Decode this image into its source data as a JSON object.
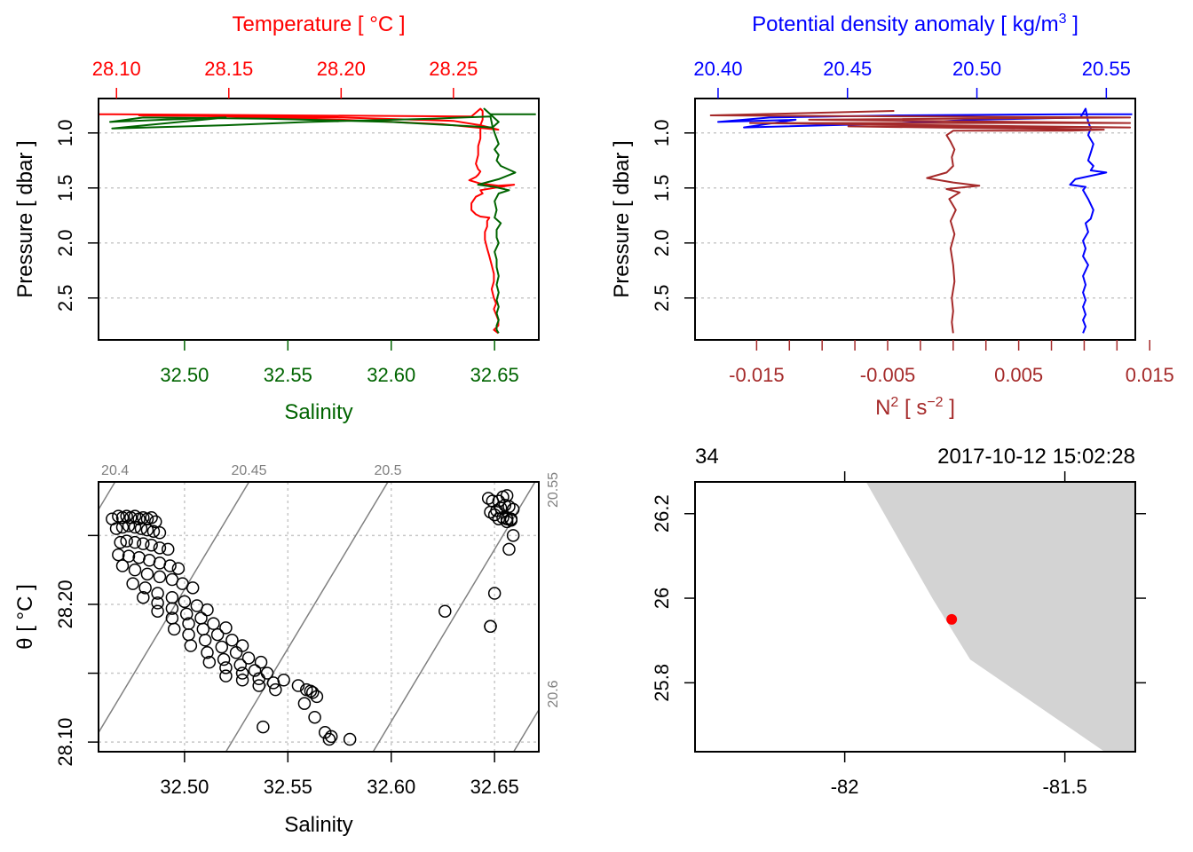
{
  "chart_data": [
    {
      "type": "line",
      "panel": "top-left",
      "title": "",
      "top_axis": {
        "label": "Temperature [ °C ]",
        "color": "#FF0000",
        "range": [
          28.092,
          28.288
        ],
        "ticks": [
          28.1,
          28.15,
          28.2,
          28.25
        ],
        "tick_labels": [
          "28.10",
          "28.15",
          "28.20",
          "28.25"
        ]
      },
      "bottom_axis": {
        "label": "Salinity",
        "color": "#006400",
        "range": [
          32.4584,
          32.6714
        ],
        "ticks": [
          32.5,
          32.55,
          32.6,
          32.65
        ],
        "tick_labels": [
          "32.50",
          "32.55",
          "32.60",
          "32.65"
        ]
      },
      "y_axis": {
        "label": "Pressure [ dbar ]",
        "range": [
          0.687,
          2.881
        ],
        "reversed": true,
        "ticks": [
          1.0,
          1.5,
          2.0,
          2.5
        ],
        "tick_labels": [
          "1.0",
          "1.5",
          "2.0",
          "2.5"
        ],
        "grid": "horizontal-dotted"
      },
      "series": [
        {
          "name": "Temperature",
          "axis": "top",
          "color": "#FF0000",
          "x": [
            28.092,
            28.258,
            28.262,
            28.263,
            28.263,
            28.262,
            28.27,
            28.245,
            28.2,
            28.15,
            28.11,
            28.2,
            28.25,
            28.262,
            28.262,
            28.262,
            28.261,
            28.261,
            28.26,
            28.261,
            28.262,
            28.261,
            28.26,
            28.257,
            28.262,
            28.27,
            28.277,
            28.268,
            28.262,
            28.263,
            28.26,
            28.258,
            28.258,
            28.26,
            28.262,
            28.266,
            28.265,
            28.265,
            28.264,
            28.264,
            28.265,
            28.266,
            28.267,
            28.268,
            28.268,
            28.267,
            28.268,
            28.269,
            28.268,
            28.269,
            28.27,
            28.27,
            28.268,
            28.27
          ],
          "y": [
            0.83,
            0.85,
            0.78,
            0.8,
            0.88,
            0.93,
            0.97,
            0.92,
            0.88,
            0.85,
            0.84,
            0.86,
            0.89,
            0.93,
            0.98,
            1.05,
            1.12,
            1.2,
            1.28,
            1.33,
            1.35,
            1.38,
            1.4,
            1.43,
            1.46,
            1.48,
            1.47,
            1.5,
            1.52,
            1.55,
            1.58,
            1.64,
            1.7,
            1.74,
            1.76,
            1.77,
            1.8,
            1.85,
            1.9,
            1.97,
            2.05,
            2.12,
            2.2,
            2.28,
            2.35,
            2.42,
            2.5,
            2.55,
            2.6,
            2.65,
            2.7,
            2.75,
            2.79,
            2.82
          ]
        },
        {
          "name": "Salinity",
          "axis": "bottom",
          "color": "#006400",
          "x": [
            32.67,
            32.648,
            32.645,
            32.652,
            32.649,
            32.6,
            32.54,
            32.48,
            32.464,
            32.49,
            32.52,
            32.47,
            32.465,
            32.52,
            32.56,
            32.62,
            32.648,
            32.649,
            32.65,
            32.651,
            32.652,
            32.65,
            32.652,
            32.651,
            32.653,
            32.66,
            32.652,
            32.642,
            32.65,
            32.657,
            32.652,
            32.65,
            32.651,
            32.65,
            32.653,
            32.651,
            32.651,
            32.652,
            32.65,
            32.651,
            32.651,
            32.652,
            32.651,
            32.652,
            32.651,
            32.652,
            32.651,
            32.652,
            32.651,
            32.651,
            32.652
          ],
          "y": [
            0.83,
            0.83,
            0.78,
            0.9,
            0.95,
            0.9,
            0.87,
            0.86,
            0.9,
            0.88,
            0.86,
            0.95,
            0.96,
            0.93,
            0.9,
            0.87,
            0.85,
            0.94,
            1.0,
            1.05,
            1.1,
            1.15,
            1.2,
            1.25,
            1.3,
            1.36,
            1.42,
            1.47,
            1.49,
            1.52,
            1.55,
            1.62,
            1.7,
            1.77,
            1.82,
            1.88,
            1.95,
            2.0,
            2.08,
            2.15,
            2.22,
            2.3,
            2.38,
            2.45,
            2.52,
            2.58,
            2.64,
            2.7,
            2.75,
            2.79,
            2.82
          ]
        }
      ]
    },
    {
      "type": "line",
      "panel": "top-right",
      "title": "",
      "top_axis": {
        "label": "Potential density anomaly [ kg/m3 ]",
        "color": "#0000FF",
        "range": [
          20.3911,
          20.5612
        ],
        "ticks": [
          20.4,
          20.45,
          20.5,
          20.55
        ],
        "tick_labels": [
          "20.40",
          "20.45",
          "20.50",
          "20.55"
        ]
      },
      "bottom_axis": {
        "label": "N2 [ s-2 ]",
        "color": "#A52A2A",
        "range": [
          -0.0197,
          0.0139
        ],
        "ticks": [
          -0.015,
          -0.0125,
          -0.01,
          -0.0075,
          -0.005,
          -0.0025,
          0.0,
          0.0025,
          0.005,
          0.0075,
          0.01,
          0.0125,
          0.015
        ],
        "tick_labels": [
          "-0.015",
          "",
          "",
          "",
          "-0.005",
          "",
          "",
          "",
          "0.005",
          "",
          "",
          "",
          "0.015"
        ]
      },
      "y_axis": {
        "label": "Pressure [ dbar ]",
        "range": [
          0.687,
          2.881
        ],
        "reversed": true,
        "ticks": [
          1.0,
          1.5,
          2.0,
          2.5
        ],
        "tick_labels": [
          "1.0",
          "1.5",
          "2.0",
          "2.5"
        ],
        "grid": "horizontal-dotted"
      },
      "series": [
        {
          "name": "Potential density anomaly",
          "axis": "top",
          "color": "#0000FF",
          "x": [
            20.56,
            20.54,
            20.47,
            20.42,
            20.4,
            20.43,
            20.41,
            20.46,
            20.5,
            20.54,
            20.542,
            20.543,
            20.544,
            20.543,
            20.545,
            20.544,
            20.543,
            20.545,
            20.544,
            20.55,
            20.538,
            20.536,
            20.542,
            20.541,
            20.543,
            20.545,
            20.544,
            20.542,
            20.543,
            20.541,
            20.542,
            20.541,
            20.543,
            20.541,
            20.542,
            20.541,
            20.542,
            20.541,
            20.542,
            20.541,
            20.542,
            20.541
          ],
          "y": [
            0.83,
            0.83,
            0.84,
            0.86,
            0.9,
            0.88,
            0.95,
            0.92,
            0.88,
            0.86,
            0.78,
            0.9,
            0.96,
            1.02,
            1.1,
            1.18,
            1.25,
            1.3,
            1.34,
            1.36,
            1.42,
            1.47,
            1.49,
            1.52,
            1.6,
            1.7,
            1.78,
            1.82,
            1.9,
            1.98,
            2.05,
            2.12,
            2.2,
            2.3,
            2.38,
            2.45,
            2.52,
            2.58,
            2.65,
            2.7,
            2.76,
            2.82
          ]
        },
        {
          "name": "N2",
          "axis": "bottom",
          "color": "#A52A2A",
          "x": [
            -0.0045,
            -0.0185,
            0.0135,
            -0.011,
            0.0135,
            -0.0155,
            0.0135,
            -0.008,
            0.0115,
            0.009,
            0.0,
            -0.0005,
            -0.0002,
            0.0001,
            -0.0001,
            0.0,
            -0.0005,
            -0.002,
            0.0,
            0.002,
            -0.0005,
            0.0005,
            -0.0003,
            0.0002,
            -0.0002,
            0.0001,
            -0.0002,
            0.0,
            0.0001,
            -0.0001,
            0.0,
            -0.0001,
            0.0
          ],
          "y": [
            0.8,
            0.84,
            0.86,
            0.88,
            0.91,
            0.91,
            0.95,
            0.94,
            0.97,
            0.98,
            0.98,
            1.02,
            1.08,
            1.15,
            1.22,
            1.3,
            1.36,
            1.41,
            1.45,
            1.48,
            1.51,
            1.54,
            1.6,
            1.7,
            1.8,
            1.92,
            2.05,
            2.2,
            2.35,
            2.5,
            2.62,
            2.72,
            2.82
          ]
        }
      ]
    },
    {
      "type": "scatter",
      "panel": "bottom-left",
      "title": "",
      "xlabel": "Salinity",
      "ylabel": "θ [ °C ]",
      "xlim": [
        32.4584,
        32.6714
      ],
      "ylim": [
        28.093,
        28.2889
      ],
      "x_ticks": [
        32.5,
        32.55,
        32.6,
        32.65
      ],
      "x_tick_labels": [
        "32.50",
        "32.55",
        "32.60",
        "32.65"
      ],
      "y_ticks": [
        28.1,
        28.15,
        28.2,
        28.25
      ],
      "y_tick_labels": [
        "28.10",
        "",
        "28.20",
        ""
      ],
      "grid": "dotted",
      "isopycnal_color": "#808080",
      "isopycnals": [
        {
          "label": "20.4",
          "value": 20.4,
          "slope_sal_per_temp": 0.4,
          "anchor_sal": 32.4664,
          "anchor_temp": 28.2889
        },
        {
          "label": "20.45",
          "value": 20.45,
          "slope_sal_per_temp": 0.4,
          "anchor_sal": 32.5312,
          "anchor_temp": 28.2889
        },
        {
          "label": "20.5",
          "value": 20.5,
          "slope_sal_per_temp": 0.4,
          "anchor_sal": 32.5984,
          "anchor_temp": 28.2889
        },
        {
          "label": "20.55",
          "value": 20.55,
          "slope_sal_per_temp": 0.4,
          "anchor_sal": 32.668,
          "anchor_temp": 28.2849
        },
        {
          "label": "20.6",
          "value": 20.6,
          "slope_sal_per_temp": 0.4,
          "anchor_sal": 32.736,
          "anchor_temp": 28.2849
        }
      ],
      "points": {
        "salinity": [
          32.465,
          32.468,
          32.47,
          32.472,
          32.474,
          32.476,
          32.478,
          32.48,
          32.482,
          32.484,
          32.486,
          32.467,
          32.47,
          32.473,
          32.476,
          32.479,
          32.482,
          32.485,
          32.488,
          32.469,
          32.472,
          32.476,
          32.48,
          32.484,
          32.488,
          32.492,
          32.468,
          32.473,
          32.478,
          32.483,
          32.488,
          32.493,
          32.497,
          32.47,
          32.476,
          32.482,
          32.488,
          32.494,
          32.499,
          32.504,
          32.475,
          32.481,
          32.487,
          32.494,
          32.5,
          32.506,
          32.511,
          32.48,
          32.487,
          32.494,
          32.501,
          32.508,
          32.514,
          32.52,
          32.487,
          32.494,
          32.502,
          32.509,
          32.516,
          32.523,
          32.528,
          32.495,
          32.502,
          32.51,
          32.518,
          32.525,
          32.531,
          32.537,
          32.503,
          32.511,
          32.519,
          32.527,
          32.534,
          32.54,
          32.512,
          32.52,
          32.528,
          32.536,
          32.543,
          32.52,
          32.528,
          32.536,
          32.544,
          32.548,
          32.555,
          32.559,
          32.561,
          32.562,
          32.564,
          32.558,
          32.563,
          32.568,
          32.57,
          32.571,
          32.538,
          32.58,
          32.626,
          32.648,
          32.648,
          32.65,
          32.652,
          32.654,
          32.656,
          32.647,
          32.649,
          32.651,
          32.653,
          32.655,
          32.657,
          32.659,
          32.648,
          32.65,
          32.652,
          32.654,
          32.656,
          32.658,
          32.656,
          32.658,
          32.659,
          32.657
        ],
        "theta": [
          28.262,
          28.264,
          28.263,
          28.264,
          28.263,
          28.264,
          28.262,
          28.263,
          28.262,
          28.263,
          28.26,
          28.255,
          28.256,
          28.257,
          28.256,
          28.255,
          28.254,
          28.253,
          28.252,
          28.245,
          28.246,
          28.245,
          28.244,
          28.243,
          28.241,
          28.24,
          28.236,
          28.235,
          28.234,
          28.232,
          28.23,
          28.228,
          28.226,
          28.228,
          28.225,
          28.222,
          28.22,
          28.218,
          28.215,
          28.212,
          28.215,
          28.212,
          28.208,
          28.205,
          28.202,
          28.199,
          28.196,
          28.205,
          28.201,
          28.197,
          28.193,
          28.19,
          28.186,
          28.183,
          28.195,
          28.19,
          28.186,
          28.182,
          28.178,
          28.174,
          28.17,
          28.182,
          28.178,
          28.174,
          28.169,
          28.165,
          28.161,
          28.158,
          28.17,
          28.165,
          28.16,
          28.156,
          28.152,
          28.15,
          28.158,
          28.154,
          28.15,
          28.146,
          28.143,
          28.148,
          28.145,
          28.141,
          28.138,
          28.145,
          28.141,
          28.138,
          28.137,
          28.136,
          28.133,
          28.128,
          28.118,
          28.107,
          28.102,
          28.104,
          28.111,
          28.102,
          28.195,
          28.184,
          28.184,
          28.208,
          28.275,
          28.278,
          28.279,
          28.277,
          28.275,
          28.268,
          28.27,
          28.272,
          28.271,
          28.269,
          28.267,
          28.265,
          28.262,
          28.263,
          28.262,
          28.261,
          28.26,
          28.262,
          28.25,
          28.24,
          28.228,
          28.262
        ]
      }
    },
    {
      "type": "scatter",
      "panel": "bottom-right",
      "title": "",
      "xlabel": "",
      "ylabel": "",
      "top_left_label": "34",
      "top_right_label": "2017-10-12 15:02:28",
      "xlim": [
        -82.34,
        -81.34
      ],
      "ylim": [
        25.637,
        26.275
      ],
      "x_ticks": [
        -82,
        -81.5
      ],
      "x_tick_labels": [
        "-82",
        "-81.5"
      ],
      "y_ticks": [
        26.2,
        26.0,
        25.8
      ],
      "y_tick_labels": [
        "26.2",
        "26",
        "25.8"
      ],
      "land_color": "#D3D3D3",
      "land_polygon": {
        "lon": [
          -81.9515,
          -81.34,
          -81.34,
          -81.4097,
          -81.7151,
          -81.7999,
          -81.8554,
          -81.9515
        ],
        "lat": [
          26.275,
          26.275,
          25.637,
          25.637,
          25.855,
          25.998,
          26.099,
          26.275
        ]
      },
      "station": {
        "lon": -81.757,
        "lat": 25.95,
        "color": "#FF0000"
      }
    }
  ]
}
